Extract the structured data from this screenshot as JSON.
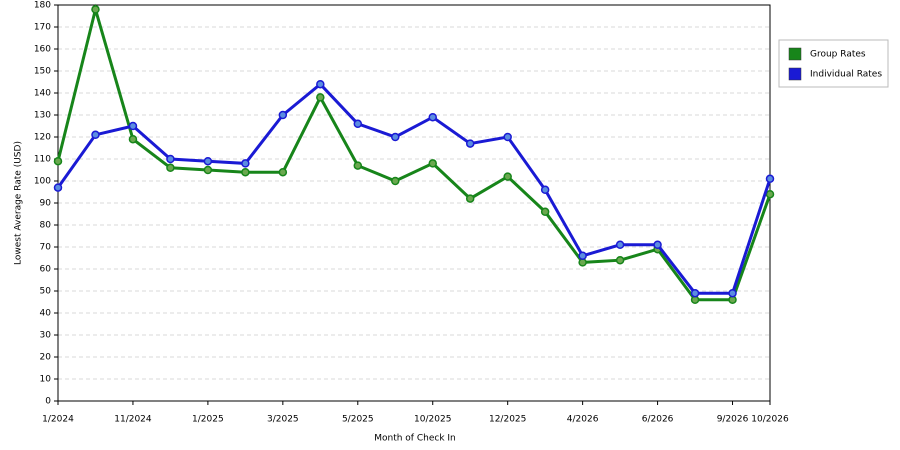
{
  "chart_data": {
    "type": "line",
    "x_label": "Month of Check In",
    "y_label": "Lowest Average Rate (USD)",
    "categories": [
      "1/2024",
      null,
      "11/2024",
      null,
      "1/2025",
      null,
      "3/2025",
      null,
      "5/2025",
      null,
      "10/2025",
      null,
      "12/2025",
      null,
      "4/2026",
      null,
      "6/2026",
      null,
      "9/2026",
      "10/2026"
    ],
    "series": [
      {
        "name": "Group Rates",
        "color": "#17851a",
        "marker_color": "#6aa84f",
        "values": [
          109,
          178,
          119,
          106,
          105,
          104,
          104,
          138,
          107,
          100,
          108,
          92,
          102,
          86,
          63,
          64,
          69,
          46,
          46,
          94
        ]
      },
      {
        "name": "Individual Rates",
        "color": "#1a1ad4",
        "marker_color": "#5b8de0",
        "values": [
          97,
          121,
          125,
          110,
          109,
          108,
          130,
          144,
          126,
          120,
          129,
          117,
          120,
          96,
          66,
          71,
          71,
          49,
          49,
          101
        ]
      }
    ],
    "ylim": [
      0,
      180
    ],
    "yticks": [
      0,
      10,
      20,
      30,
      40,
      50,
      60,
      70,
      80,
      90,
      100,
      110,
      120,
      130,
      140,
      150,
      160,
      170,
      180
    ],
    "grid": true,
    "legend": "right"
  }
}
